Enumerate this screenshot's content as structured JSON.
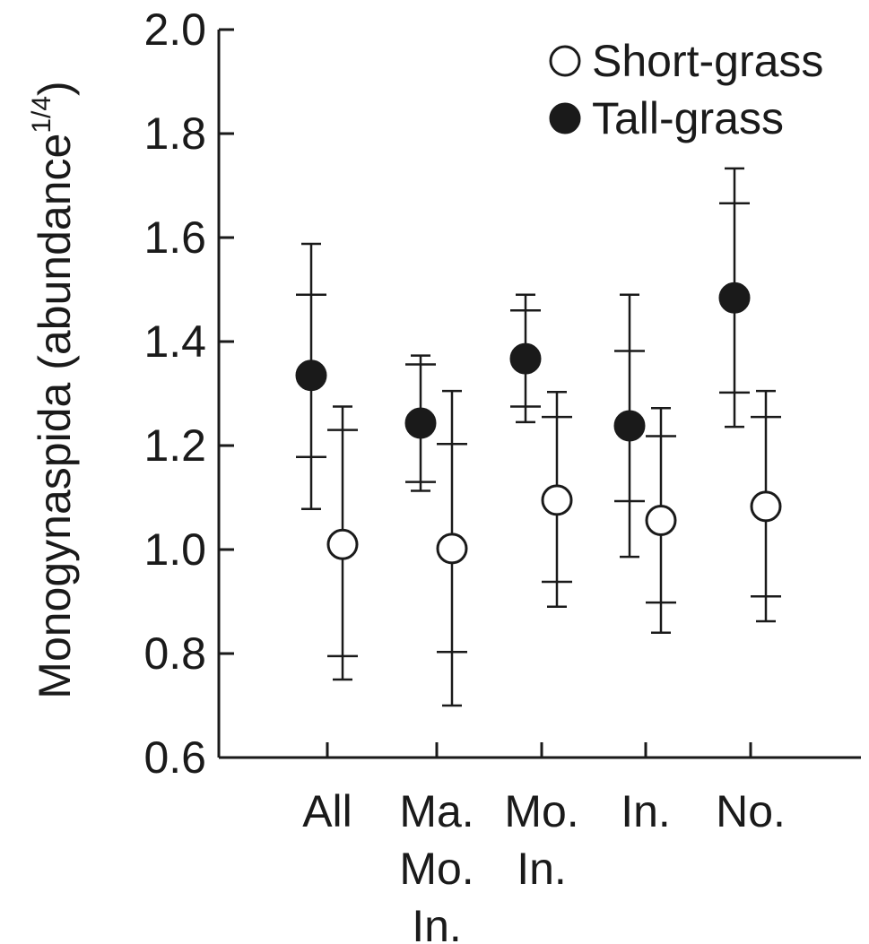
{
  "chart_data": {
    "type": "scatter",
    "title": "",
    "xlabel": "",
    "ylabel": {
      "main": "Monogynaspida (abundance",
      "superscript": "1/4",
      "close": ")"
    },
    "ylim": [
      0.6,
      2.0
    ],
    "yticks": [
      {
        "value": 0.6,
        "label": "0.6"
      },
      {
        "value": 0.8,
        "label": "0.8"
      },
      {
        "value": 1.0,
        "label": "1.0"
      },
      {
        "value": 1.2,
        "label": "1.2"
      },
      {
        "value": 1.4,
        "label": "1.4"
      },
      {
        "value": 1.6,
        "label": "1.6"
      },
      {
        "value": 1.8,
        "label": "1.8"
      },
      {
        "value": 2.0,
        "label": "2.0"
      }
    ],
    "categories": [
      {
        "key": "all",
        "lines": [
          "All"
        ]
      },
      {
        "key": "mamoin",
        "lines": [
          "Ma.",
          "Mo.",
          "In."
        ]
      },
      {
        "key": "moin",
        "lines": [
          "Mo.",
          "In."
        ]
      },
      {
        "key": "in",
        "lines": [
          "In."
        ]
      },
      {
        "key": "no",
        "lines": [
          "No."
        ]
      }
    ],
    "grid": false,
    "legend_position": "top-right",
    "series": [
      {
        "name": "Short-grass",
        "marker": "open-circle",
        "fill": "#ffffff",
        "stroke": "#1a1a1a",
        "points": [
          {
            "y": 1.01,
            "inner_low": 0.795,
            "inner_high": 1.23,
            "outer_low": 0.75,
            "outer_high": 1.275
          },
          {
            "y": 1.002,
            "inner_low": 0.803,
            "inner_high": 1.203,
            "outer_low": 0.7,
            "outer_high": 1.305
          },
          {
            "y": 1.095,
            "inner_low": 0.938,
            "inner_high": 1.255,
            "outer_low": 0.89,
            "outer_high": 1.303
          },
          {
            "y": 1.056,
            "inner_low": 0.898,
            "inner_high": 1.218,
            "outer_low": 0.84,
            "outer_high": 1.272
          },
          {
            "y": 1.083,
            "inner_low": 0.91,
            "inner_high": 1.255,
            "outer_low": 0.862,
            "outer_high": 1.305
          }
        ]
      },
      {
        "name": "Tall-grass",
        "marker": "filled-circle",
        "fill": "#1a1a1a",
        "stroke": "#1a1a1a",
        "points": [
          {
            "y": 1.335,
            "inner_low": 1.178,
            "inner_high": 1.49,
            "outer_low": 1.078,
            "outer_high": 1.588
          },
          {
            "y": 1.243,
            "inner_low": 1.13,
            "inner_high": 1.356,
            "outer_low": 1.113,
            "outer_high": 1.373
          },
          {
            "y": 1.367,
            "inner_low": 1.275,
            "inner_high": 1.46,
            "outer_low": 1.245,
            "outer_high": 1.49
          },
          {
            "y": 1.238,
            "inner_low": 1.093,
            "inner_high": 1.382,
            "outer_low": 0.986,
            "outer_high": 1.49
          },
          {
            "y": 1.484,
            "inner_low": 1.302,
            "inner_high": 1.666,
            "outer_low": 1.236,
            "outer_high": 1.733
          }
        ]
      }
    ]
  }
}
